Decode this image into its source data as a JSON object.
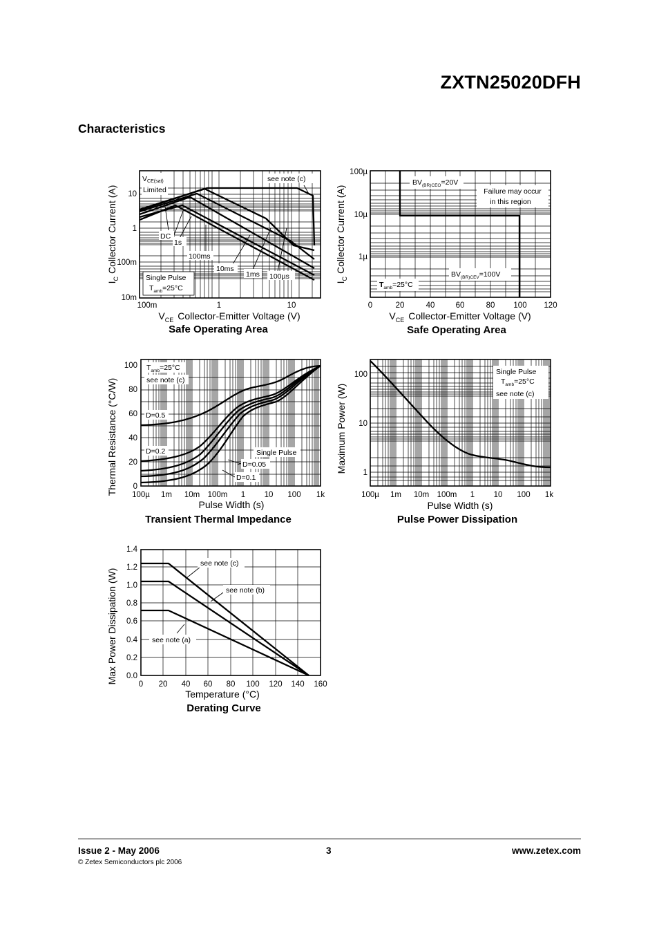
{
  "header": {
    "part_number": "ZXTN25020DFH"
  },
  "section_title": "Characteristics",
  "soa_vce": {
    "title": "Safe Operating Area",
    "xlabel_main": "V",
    "xlabel_sub": "CE",
    "xlabel_rest": "Collector-Emitter Voltage (V)",
    "ylabel_main": "I",
    "ylabel_sub": "C",
    "ylabel_rest": "Collector Current (A)",
    "x_ticks": [
      "100m",
      "1",
      "10"
    ],
    "y_ticks": [
      "10",
      "1",
      "100m",
      "10m"
    ],
    "labels": {
      "vce_sat_main": "V",
      "vce_sat_sub": "CE(sat)",
      "limited": "Limited",
      "see_note": "see note (c)",
      "dc": "DC",
      "s1": "1s",
      "ms100": "100ms",
      "ms10": "10ms",
      "ms1": "1ms",
      "us100": "100µs",
      "single_pulse": "Single Pulse",
      "t_main": "T",
      "t_sub": "amb",
      "t_rest": "=25°C"
    }
  },
  "soa_bv": {
    "title": "Safe Operating Area",
    "xlabel_main": "V",
    "xlabel_sub": "CE",
    "xlabel_rest": "Collector-Emitter Voltage (V)",
    "ylabel_main": "I",
    "ylabel_sub": "C",
    "ylabel_rest": "Collector Current (A)",
    "x_ticks": [
      "0",
      "20",
      "40",
      "60",
      "80",
      "100",
      "120"
    ],
    "y_ticks": [
      "100µ",
      "10µ",
      "1µ"
    ],
    "labels": {
      "bv_main": "BV",
      "bv_ceo_sub": "(BR)CEO",
      "bv_ceo_rest": "=20V",
      "failure_1": "Failure may occur",
      "failure_2": "in this region",
      "bv_cev_sub": "(BR)CEV",
      "bv_cev_rest": "=100V",
      "t_main": "T",
      "t_sub": "amb",
      "t_rest": "=25°C"
    }
  },
  "thermal": {
    "title": "Transient Thermal Impedance",
    "xlabel": "Pulse Width (s)",
    "ylabel": "Thermal Resistance (°C/W)",
    "x_ticks": [
      "100µ",
      "1m",
      "10m",
      "100m",
      "1",
      "10",
      "100",
      "1k"
    ],
    "y_ticks": [
      "100",
      "80",
      "60",
      "40",
      "20",
      "0"
    ],
    "labels": {
      "t_main": "T",
      "t_sub": "amb",
      "t_rest": "=25°C",
      "see_note": "see note (c)",
      "d05": "D=0.5",
      "d02": "D=0.2",
      "single_pulse": "Single Pulse",
      "d005": "D=0.05",
      "d01": "D=0.1"
    }
  },
  "pulse_power": {
    "title": "Pulse Power Dissipation",
    "xlabel": "Pulse Width (s)",
    "ylabel": "Maximum Power (W)",
    "x_ticks": [
      "100µ",
      "1m",
      "10m",
      "100m",
      "1",
      "10",
      "100",
      "1k"
    ],
    "y_ticks": [
      "100",
      "10",
      "1"
    ],
    "labels": {
      "single_pulse": "Single Pulse",
      "t_main": "T",
      "t_sub": "amb",
      "t_rest": "=25°C",
      "see_note": "see note (c)"
    }
  },
  "derating": {
    "title": "Derating Curve",
    "xlabel": "Temperature (°C)",
    "ylabel": "Max Power Dissipation (W)",
    "x_ticks": [
      "0",
      "20",
      "40",
      "60",
      "80",
      "100",
      "120",
      "140",
      "160"
    ],
    "y_ticks": [
      "1.4",
      "1.2",
      "1.0",
      "0.8",
      "0.6",
      "0.4",
      "0.2",
      "0.0"
    ],
    "labels": {
      "note_c": "see note (c)",
      "note_b": "see note (b)",
      "note_a": "see note (a)"
    }
  },
  "footer": {
    "issue": "Issue 2 - May 2006",
    "copyright": "© Zetex Semiconductors plc 2006",
    "page_number": "3",
    "website": "www.zetex.com"
  }
}
